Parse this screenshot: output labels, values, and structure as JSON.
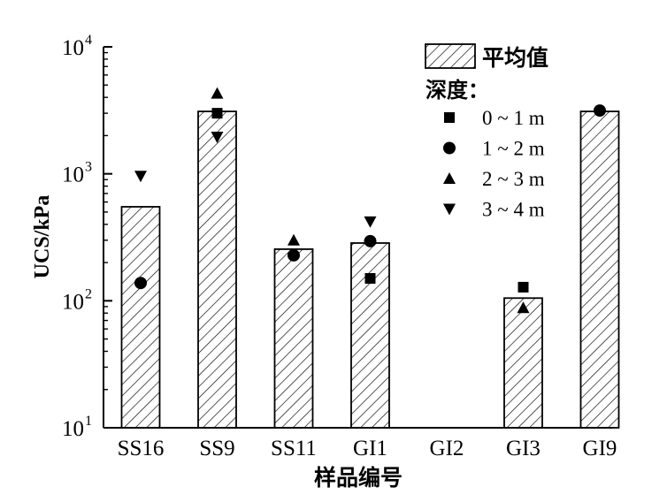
{
  "chart_data": {
    "type": "bar",
    "yscale": "log",
    "ylim": [
      10,
      10000
    ],
    "xlabel": "样品编号",
    "ylabel": "UCS/kPa",
    "categories": [
      "SS16",
      "SS9",
      "SS11",
      "GI1",
      "GI2",
      "GI3",
      "GI9"
    ],
    "bars": {
      "name": "平均值",
      "values": [
        550,
        3100,
        255,
        285,
        null,
        105,
        3100
      ]
    },
    "legend_title": "深度：",
    "legend_position": "top-right",
    "series": [
      {
        "name": "0 ~ 1 m",
        "marker": "square",
        "values": [
          null,
          3000,
          null,
          150,
          null,
          128,
          null
        ]
      },
      {
        "name": "1 ~ 2 m",
        "marker": "circle",
        "values": [
          138,
          null,
          228,
          295,
          null,
          null,
          3150
        ]
      },
      {
        "name": "2 ~ 3 m",
        "marker": "triangle-up",
        "values": [
          null,
          4300,
          300,
          null,
          null,
          88,
          null
        ]
      },
      {
        "name": "3 ~ 4 m",
        "marker": "triangle-down",
        "values": [
          960,
          1950,
          null,
          420,
          null,
          null,
          null
        ]
      }
    ],
    "yticks": [
      {
        "base": "10",
        "exp": "1"
      },
      {
        "base": "10",
        "exp": "2"
      },
      {
        "base": "10",
        "exp": "3"
      },
      {
        "base": "10",
        "exp": "4"
      }
    ],
    "colors": {
      "ink": "#000000",
      "fill": "#ffffff"
    }
  }
}
